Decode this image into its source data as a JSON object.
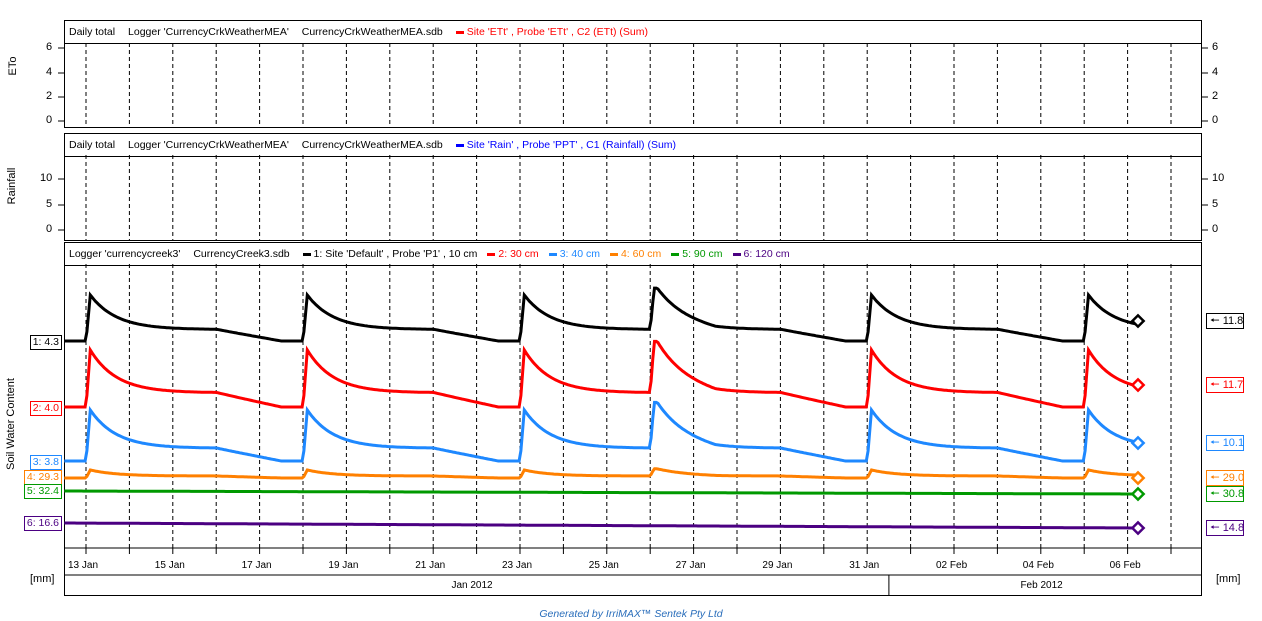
{
  "panels": {
    "eto": {
      "ylabel": "ETo",
      "header": [
        "Daily total",
        "Logger 'CurrencyCrkWeatherMEA'",
        "CurrencyCrkWeatherMEA.sdb"
      ],
      "series_label": "Site 'ETt' , Probe 'ETt' , C2 (ETt) (Sum)",
      "series_color": "#ff0000",
      "yticks": [
        "0",
        "2",
        "4",
        "6"
      ]
    },
    "rain": {
      "ylabel": "Rainfall",
      "header": [
        "Daily total",
        "Logger 'CurrencyCrkWeatherMEA'",
        "CurrencyCrkWeatherMEA.sdb"
      ],
      "series_label": "Site 'Rain' , Probe 'PPT' , C1 (Rainfall) (Sum)",
      "series_color": "#0000ff",
      "yticks": [
        "0",
        "5",
        "10"
      ]
    },
    "soil": {
      "ylabel": "Soil Water Content",
      "header": [
        "Logger 'currencycreek3'",
        "CurrencyCreek3.sdb"
      ]
    }
  },
  "chart_data": {
    "type": "line",
    "title": "Soil Water Content",
    "xlabel": "",
    "units_left": "[mm]",
    "units_right": "[mm]",
    "x_ticks": [
      "13 Jan",
      "15 Jan",
      "17 Jan",
      "19 Jan",
      "21 Jan",
      "23 Jan",
      "25 Jan",
      "27 Jan",
      "29 Jan",
      "31 Jan",
      "02 Feb",
      "04 Feb",
      "06 Feb"
    ],
    "months": [
      "Jan 2012",
      "Feb 2012"
    ],
    "irrigation_event_days": [
      "13 Jan",
      "18 Jan",
      "23 Jan",
      "26 Jan",
      "31 Jan",
      "05 Feb"
    ],
    "series": [
      {
        "name": "1: Site 'Default' , Probe 'P1' , 10 cm",
        "color": "#000000",
        "start_label": "1: 4.3",
        "end_label": "11.8",
        "start": 4.3,
        "peak_rise": 4.6,
        "end": 11.8
      },
      {
        "name": "2: 30 cm",
        "color": "#ff0000",
        "start_label": "2: 4.0",
        "end_label": "11.7",
        "start": 4.0,
        "peak_rise": 5.7,
        "end": 11.7
      },
      {
        "name": "3: 40 cm",
        "color": "#1e88ff",
        "start_label": "3: 3.8",
        "end_label": "10.1",
        "start": 3.8,
        "peak_rise": 5.1,
        "end": 10.1
      },
      {
        "name": "4: 60 cm",
        "color": "#ff8000",
        "start_label": "4: 29.3",
        "end_label": "29.0",
        "start": 29.3,
        "peak_rise": 0.8,
        "end": 29.0
      },
      {
        "name": "5: 90 cm",
        "color": "#009900",
        "start_label": "5: 32.4",
        "end_label": "30.8",
        "start": 32.4,
        "peak_rise": 0.0,
        "end": 30.8
      },
      {
        "name": "6: 120 cm",
        "color": "#4b0082",
        "start_label": "6: 16.6",
        "end_label": "14.8",
        "start": 16.6,
        "peak_rise": 0.0,
        "end": 14.8
      }
    ]
  },
  "footer": "Generated by IrriMAX™ Sentek Pty Ltd"
}
